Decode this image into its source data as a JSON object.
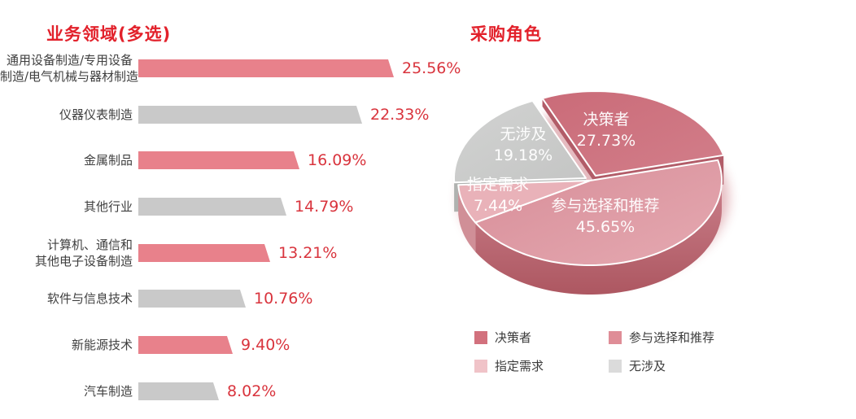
{
  "chart_data": [
    {
      "type": "bar",
      "title": "业务领域(多选)",
      "orientation": "horizontal",
      "value_unit": "%",
      "xlim": [
        0,
        26
      ],
      "grid": false,
      "title_color": "#e2212b",
      "value_color": "#d9343d",
      "categories": [
        "通用设备制造/专用设备制造/电气机械与器材制造",
        "仪器仪表制造",
        "金属制品",
        "其他行业",
        "计算机、通信和其他电子设备制造",
        "软件与信息技术",
        "新能源技术",
        "汽车制造"
      ],
      "values": [
        25.56,
        22.33,
        16.09,
        14.79,
        13.21,
        10.76,
        9.4,
        8.02
      ],
      "rows": [
        {
          "label_lines": [
            "通用设备制造/专用设备",
            "制造/电气机械与器材制造"
          ],
          "value": 25.56,
          "value_label": "25.56%",
          "color": "#e8818b"
        },
        {
          "label_lines": [
            "仪器仪表制造"
          ],
          "value": 22.33,
          "value_label": "22.33%",
          "color": "#c9c9c9"
        },
        {
          "label_lines": [
            "金属制品"
          ],
          "value": 16.09,
          "value_label": "16.09%",
          "color": "#e8818b"
        },
        {
          "label_lines": [
            "其他行业"
          ],
          "value": 14.79,
          "value_label": "14.79%",
          "color": "#c9c9c9"
        },
        {
          "label_lines": [
            "计算机、通信和",
            "其他电子设备制造"
          ],
          "value": 13.21,
          "value_label": "13.21%",
          "color": "#e8818b"
        },
        {
          "label_lines": [
            "软件与信息技术"
          ],
          "value": 10.76,
          "value_label": "10.76%",
          "color": "#c9c9c9"
        },
        {
          "label_lines": [
            "新能源技术"
          ],
          "value": 9.4,
          "value_label": "9.40%",
          "color": "#e8818b"
        },
        {
          "label_lines": [
            "汽车制造"
          ],
          "value": 8.02,
          "value_label": "8.02%",
          "color": "#c9c9c9"
        }
      ]
    },
    {
      "type": "pie",
      "style": "3d",
      "title": "采购角色",
      "title_color": "#e2212b",
      "start_angle_deg": 14,
      "direction": "ccw",
      "legend_position": "bottom",
      "categories": [
        "决策者",
        "参与选择和推荐",
        "指定需求",
        "无涉及"
      ],
      "values": [
        27.73,
        45.65,
        7.44,
        19.18
      ],
      "slices": [
        {
          "name": "决策者",
          "value": 27.73,
          "value_label": "27.73%",
          "color": "#cd7380",
          "side_color": "#b25c68"
        },
        {
          "name": "无涉及",
          "value": 19.18,
          "value_label": "19.18%",
          "color": "#cbcccb",
          "side_color": "#b0b2b0"
        },
        {
          "name": "指定需求",
          "value": 7.44,
          "value_label": "7.44%",
          "color": "#e9b2b9",
          "side_color": "#d08f97"
        },
        {
          "name": "参与选择和推荐",
          "value": 45.65,
          "value_label": "45.65%",
          "color": "#db939e",
          "side_color": "#bb6a75"
        }
      ],
      "legend": [
        {
          "label": "决策者",
          "color": "#d2717d"
        },
        {
          "label": "参与选择和推荐",
          "color": "#df8d97"
        },
        {
          "label": "指定需求",
          "color": "#f0c3c8"
        },
        {
          "label": "无涉及",
          "color": "#dbdbdb"
        }
      ]
    }
  ]
}
